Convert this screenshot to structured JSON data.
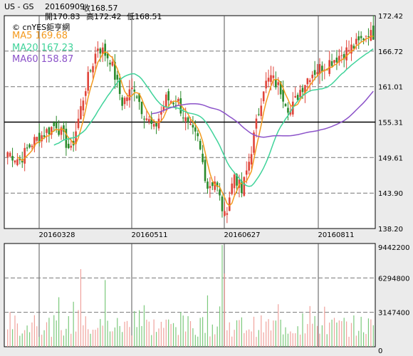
{
  "header": {
    "symbol": "US - GS",
    "date": "20160909",
    "close_label": "收168.57",
    "open_label": "開170.83",
    "high_label": "高172.42",
    "low_label": "低168.51"
  },
  "watermark": "© cnYES鉅亨網",
  "ma_legend": [
    {
      "text": "MA5 169.68",
      "color": "#f39a1e"
    },
    {
      "text": "MA20 167.23",
      "color": "#3fd39a"
    },
    {
      "text": "MA60 158.87",
      "color": "#8b52c9"
    }
  ],
  "colors": {
    "up": "#e0443a",
    "down": "#2a8a2a",
    "ma5": "#f39a1e",
    "ma20": "#3fd39a",
    "ma60": "#8b52c9",
    "vol_up": "#f0a29c",
    "vol_down": "#7cc97c"
  },
  "chart_data": {
    "type": "candlestick",
    "price_axis": {
      "ticks": [
        "172.42",
        "166.72",
        "161.01",
        "155.31",
        "149.61",
        "143.90",
        "138.20"
      ],
      "min": 138.2,
      "max": 172.42
    },
    "date_ticks": [
      "20160328",
      "20160511",
      "20160627",
      "20160811"
    ],
    "volume_axis": {
      "ticks": [
        "9442200",
        "6294800",
        "3147400",
        "0"
      ],
      "min": 0,
      "max": 9442200
    },
    "anchors": [
      {
        "i": 0,
        "c": 150.5
      },
      {
        "i": 5,
        "c": 149.2
      },
      {
        "i": 10,
        "c": 152.0
      },
      {
        "i": 15,
        "c": 153.5
      },
      {
        "i": 20,
        "c": 155.0
      },
      {
        "i": 26,
        "c": 150.5
      },
      {
        "i": 32,
        "c": 161.0
      },
      {
        "i": 37,
        "c": 167.5
      },
      {
        "i": 42,
        "c": 165.5
      },
      {
        "i": 47,
        "c": 158.5
      },
      {
        "i": 52,
        "c": 161.0
      },
      {
        "i": 55,
        "c": 157.5
      },
      {
        "i": 60,
        "c": 154.0
      },
      {
        "i": 65,
        "c": 159.0
      },
      {
        "i": 70,
        "c": 158.5
      },
      {
        "i": 74,
        "c": 154.5
      },
      {
        "i": 78,
        "c": 152.5
      },
      {
        "i": 82,
        "c": 145.0
      },
      {
        "i": 85,
        "c": 146.0
      },
      {
        "i": 89,
        "c": 140.0
      },
      {
        "i": 93,
        "c": 147.0
      },
      {
        "i": 96,
        "c": 144.0
      },
      {
        "i": 99,
        "c": 149.0
      },
      {
        "i": 102,
        "c": 155.0
      },
      {
        "i": 105,
        "c": 161.0
      },
      {
        "i": 108,
        "c": 162.5
      },
      {
        "i": 112,
        "c": 160.5
      },
      {
        "i": 116,
        "c": 157.0
      },
      {
        "i": 120,
        "c": 160.5
      },
      {
        "i": 124,
        "c": 163.0
      },
      {
        "i": 128,
        "c": 164.0
      },
      {
        "i": 132,
        "c": 165.0
      },
      {
        "i": 136,
        "c": 166.0
      },
      {
        "i": 140,
        "c": 167.0
      },
      {
        "i": 144,
        "c": 168.0
      },
      {
        "i": 148,
        "c": 170.0
      },
      {
        "i": 150,
        "c": 168.57
      }
    ],
    "candle_count": 151
  }
}
